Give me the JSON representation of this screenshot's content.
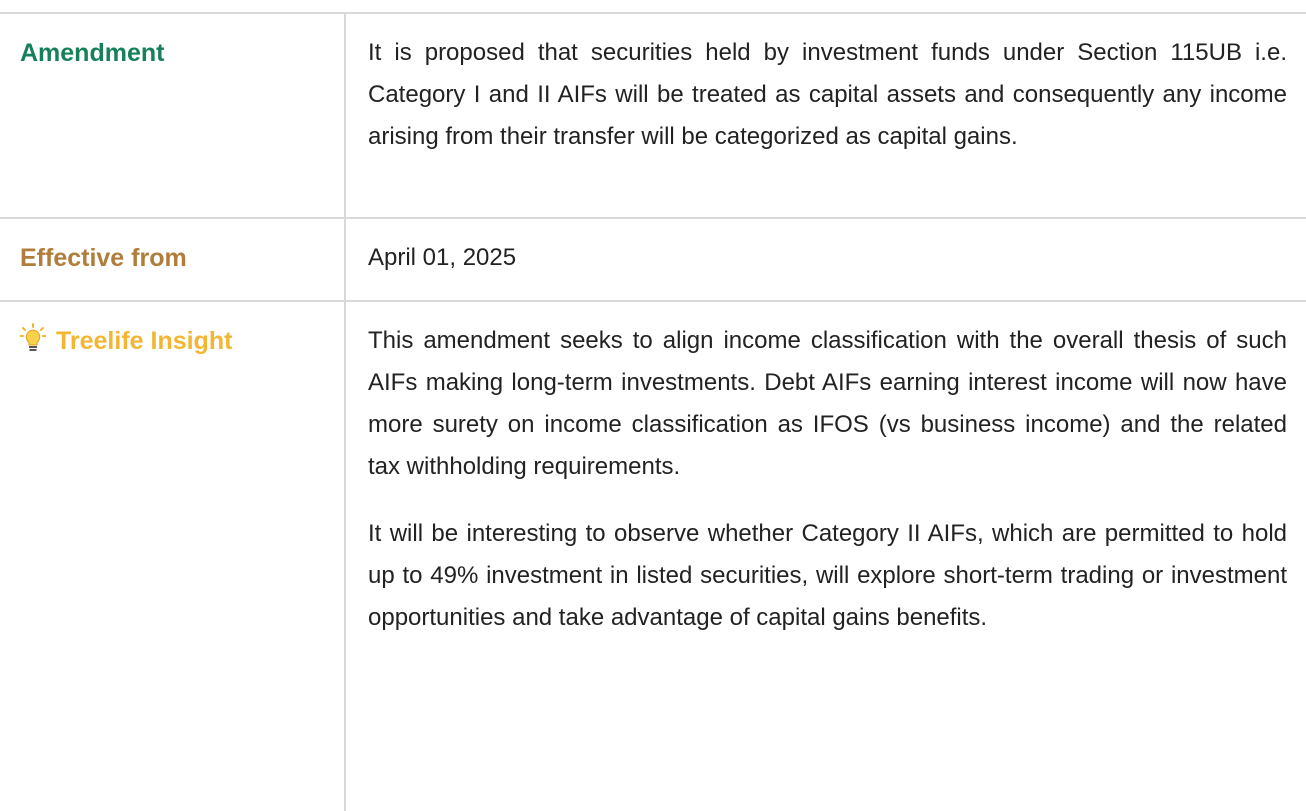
{
  "rows": [
    {
      "label": "Amendment",
      "paragraphs": [
        "It is proposed that securities held by investment funds under Section 115UB i.e. Category I and II AIFs will be treated as capital assets and consequently any income arising from their transfer will be categorized as capital gains."
      ]
    },
    {
      "label": "Effective from",
      "paragraphs": [
        "April 01, 2025"
      ]
    },
    {
      "label": "Treelife Insight",
      "paragraphs": [
        "This amendment seeks to align income classification with the overall thesis of such AIFs making long-term investments. Debt AIFs earning interest income will now have more surety on income classification as IFOS (vs business income) and the related tax withholding requirements.",
        "It will be interesting to observe whether Category II AIFs, which are permitted to hold up to 49% investment in listed securities, will explore short-term trading or investment opportunities and take advantage of capital gains benefits."
      ]
    }
  ]
}
